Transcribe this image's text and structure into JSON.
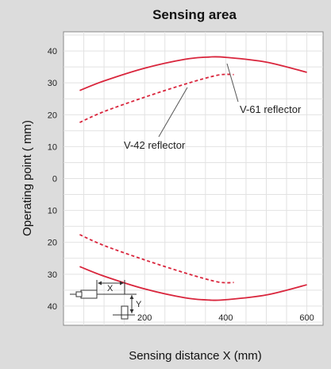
{
  "chart_data": {
    "type": "line",
    "title": "Sensing area",
    "xlabel": "Sensing distance X (mm)",
    "ylabel": "Operating point ( mm)",
    "xlim": [
      0,
      640
    ],
    "ylim": [
      -46,
      46
    ],
    "x_ticks": [
      200,
      400,
      600
    ],
    "y_ticks": [
      {
        "value": 40,
        "label": "40"
      },
      {
        "value": 30,
        "label": "30"
      },
      {
        "value": 20,
        "label": "20"
      },
      {
        "value": 10,
        "label": "10"
      },
      {
        "value": 0,
        "label": "0"
      },
      {
        "value": -10,
        "label": "10"
      },
      {
        "value": -20,
        "label": "20"
      },
      {
        "value": -30,
        "label": "30"
      },
      {
        "value": -40,
        "label": "40"
      }
    ],
    "grid": true,
    "series": [
      {
        "name": "V-61 reflector",
        "color": "#d9253c",
        "style": "solid",
        "upper": [
          [
            40,
            27.6
          ],
          [
            100,
            30.6
          ],
          [
            200,
            34.6
          ],
          [
            300,
            37.4
          ],
          [
            360,
            38.1
          ],
          [
            400,
            38.0
          ],
          [
            500,
            36.5
          ],
          [
            600,
            33.3
          ]
        ],
        "lower": [
          [
            40,
            -27.6
          ],
          [
            100,
            -30.6
          ],
          [
            200,
            -34.6
          ],
          [
            300,
            -37.4
          ],
          [
            360,
            -38.1
          ],
          [
            400,
            -38.0
          ],
          [
            500,
            -36.5
          ],
          [
            600,
            -33.3
          ]
        ]
      },
      {
        "name": "V-42 reflector",
        "color": "#d9253c",
        "style": "dashed",
        "upper": [
          [
            40,
            17.6
          ],
          [
            100,
            21.0
          ],
          [
            200,
            25.5
          ],
          [
            300,
            29.6
          ],
          [
            380,
            32.4
          ],
          [
            420,
            32.6
          ]
        ],
        "lower": [
          [
            40,
            -17.6
          ],
          [
            100,
            -21.0
          ],
          [
            200,
            -25.5
          ],
          [
            300,
            -29.6
          ],
          [
            380,
            -32.4
          ],
          [
            420,
            -32.6
          ]
        ]
      }
    ],
    "annotations": [
      {
        "text": "V-61 reflector",
        "points_to": "V-61 reflector"
      },
      {
        "text": "V-42 reflector",
        "points_to": "V-42 reflector"
      }
    ],
    "inset_labels": [
      "X",
      "Y"
    ]
  }
}
